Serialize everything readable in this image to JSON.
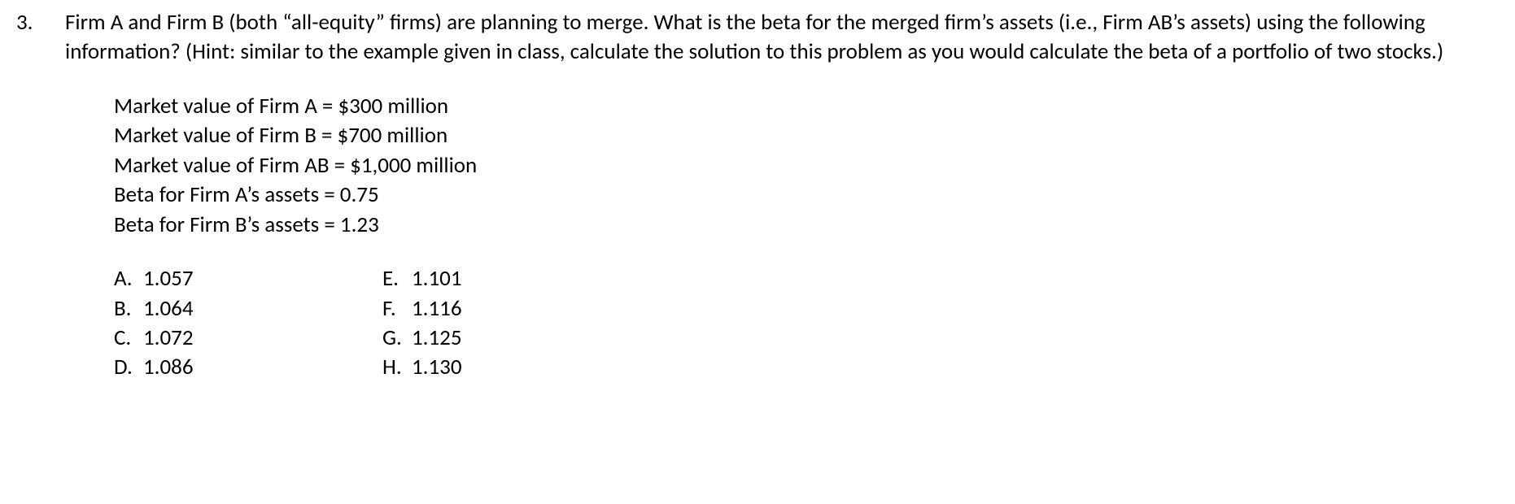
{
  "question": {
    "number": "3.",
    "stem": "Firm A and Firm B (both “all-equity” firms) are planning to merge. What is the beta for the merged firm’s assets (i.e., Firm AB’s assets) using the following information? (Hint: similar to the example given in class, calculate the solution to this problem as you would calculate the beta of a portfolio of two stocks.)",
    "data_lines": [
      "Market value of Firm A = $300 million",
      "Market value of Firm B = $700 million",
      "Market value of Firm AB = $1,000 million",
      "Beta for Firm A’s assets = 0.75",
      "Beta for Firm B’s assets = 1.23"
    ],
    "options_col1": [
      {
        "letter": "A.",
        "value": "1.057"
      },
      {
        "letter": "B.",
        "value": "1.064"
      },
      {
        "letter": "C.",
        "value": "1.072"
      },
      {
        "letter": "D.",
        "value": "1.086"
      }
    ],
    "options_col2": [
      {
        "letter": "E.",
        "value": "1.101"
      },
      {
        "letter": "F.",
        "value": "1.116"
      },
      {
        "letter": "G.",
        "value": "1.125"
      },
      {
        "letter": "H.",
        "value": "1.130"
      }
    ]
  },
  "style": {
    "font_family": "Calibri",
    "font_size_pt": 20,
    "text_color": "#000000",
    "background_color": "#ffffff"
  }
}
